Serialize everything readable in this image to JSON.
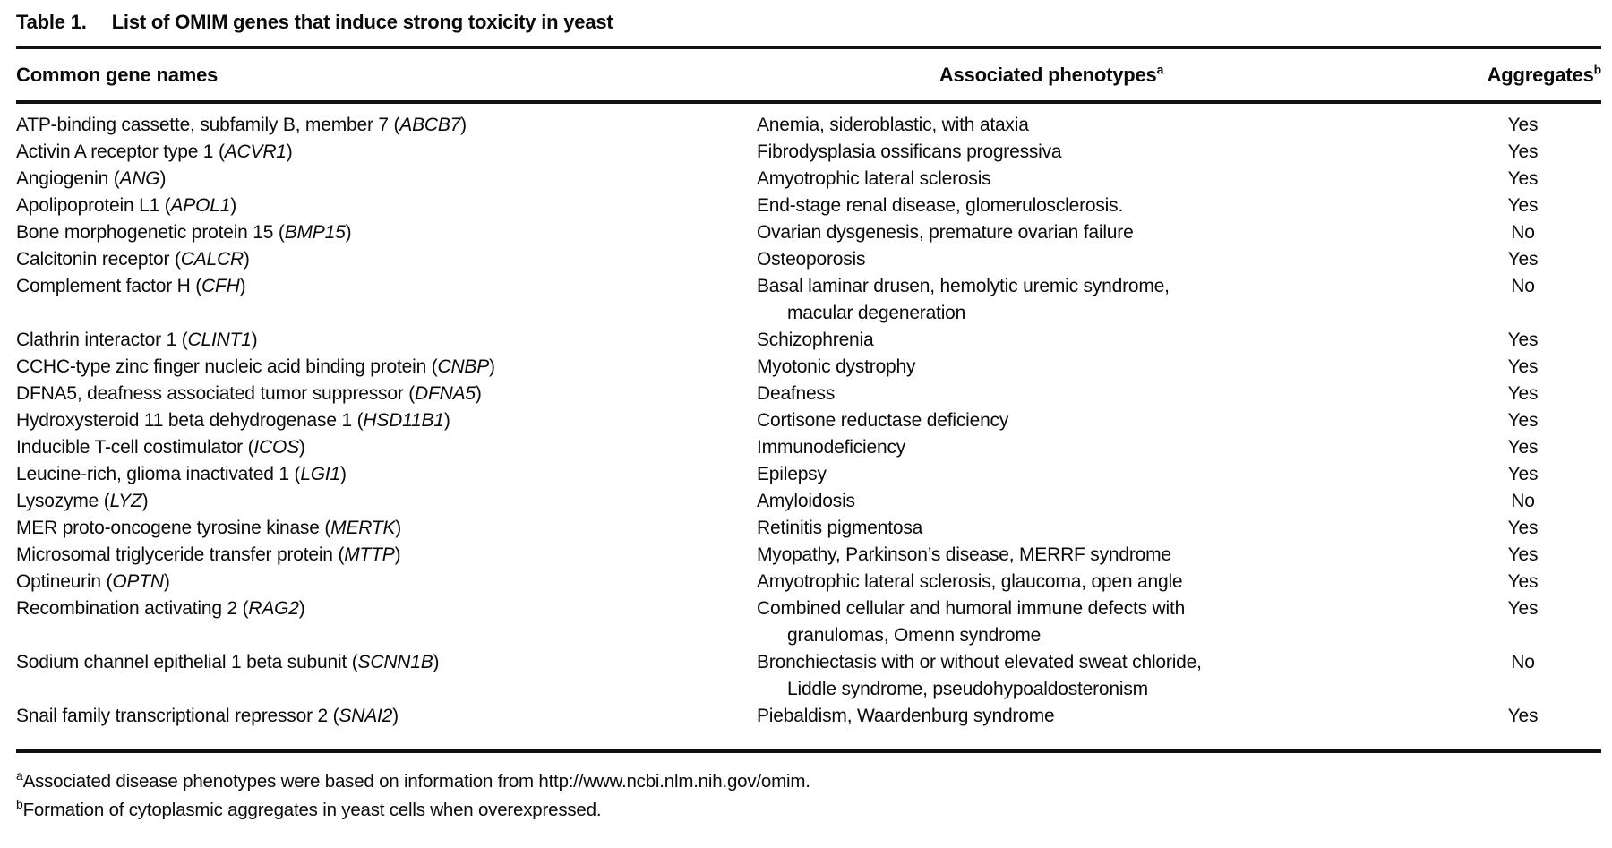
{
  "table": {
    "title_label": "Table 1.",
    "title": "List of OMIM genes that induce strong toxicity in yeast",
    "columns": {
      "gene": "Common gene names",
      "phenotype": "Associated phenotypes",
      "phenotype_sup": "a",
      "aggregates": "Aggregates",
      "aggregates_sup": "b"
    },
    "rows": [
      {
        "gene_name": "ATP-binding cassette, subfamily B, member 7",
        "gene_symbol": "ABCB7",
        "phenotype_lines": [
          "Anemia, sideroblastic, with ataxia"
        ],
        "aggregates": "Yes"
      },
      {
        "gene_name": "Activin A receptor type 1",
        "gene_symbol": "ACVR1",
        "phenotype_lines": [
          "Fibrodysplasia ossificans progressiva"
        ],
        "aggregates": "Yes"
      },
      {
        "gene_name": "Angiogenin",
        "gene_symbol": "ANG",
        "phenotype_lines": [
          "Amyotrophic lateral sclerosis"
        ],
        "aggregates": "Yes"
      },
      {
        "gene_name": "Apolipoprotein L1",
        "gene_symbol": "APOL1",
        "phenotype_lines": [
          "End-stage renal disease, glomerulosclerosis."
        ],
        "aggregates": "Yes"
      },
      {
        "gene_name": "Bone morphogenetic protein 15",
        "gene_symbol": "BMP15",
        "phenotype_lines": [
          "Ovarian dysgenesis, premature ovarian failure"
        ],
        "aggregates": "No"
      },
      {
        "gene_name": "Calcitonin receptor",
        "gene_symbol": "CALCR",
        "phenotype_lines": [
          "Osteoporosis"
        ],
        "aggregates": "Yes"
      },
      {
        "gene_name": "Complement factor H",
        "gene_symbol": "CFH",
        "phenotype_lines": [
          "Basal laminar drusen, hemolytic uremic syndrome,",
          "macular degeneration"
        ],
        "aggregates": "No"
      },
      {
        "gene_name": "Clathrin interactor 1",
        "gene_symbol": "CLINT1",
        "phenotype_lines": [
          "Schizophrenia"
        ],
        "aggregates": "Yes"
      },
      {
        "gene_name": "CCHC-type zinc finger nucleic acid binding protein",
        "gene_symbol": "CNBP",
        "phenotype_lines": [
          "Myotonic dystrophy"
        ],
        "aggregates": "Yes"
      },
      {
        "gene_name": "DFNA5, deafness associated tumor suppressor",
        "gene_symbol": "DFNA5",
        "phenotype_lines": [
          "Deafness"
        ],
        "aggregates": "Yes"
      },
      {
        "gene_name": "Hydroxysteroid 11 beta dehydrogenase 1",
        "gene_symbol": "HSD11B1",
        "phenotype_lines": [
          "Cortisone reductase deficiency"
        ],
        "aggregates": "Yes"
      },
      {
        "gene_name": "Inducible T-cell costimulator",
        "gene_symbol": "ICOS",
        "phenotype_lines": [
          "Immunodeficiency"
        ],
        "aggregates": "Yes"
      },
      {
        "gene_name": "Leucine-rich, glioma inactivated 1",
        "gene_symbol": "LGI1",
        "phenotype_lines": [
          "Epilepsy"
        ],
        "aggregates": "Yes"
      },
      {
        "gene_name": "Lysozyme",
        "gene_symbol": "LYZ",
        "phenotype_lines": [
          "Amyloidosis"
        ],
        "aggregates": "No"
      },
      {
        "gene_name": "MER proto-oncogene tyrosine kinase",
        "gene_symbol": "MERTK",
        "phenotype_lines": [
          "Retinitis pigmentosa"
        ],
        "aggregates": "Yes"
      },
      {
        "gene_name": "Microsomal triglyceride transfer protein",
        "gene_symbol": "MTTP",
        "phenotype_lines": [
          "Myopathy, Parkinson’s disease, MERRF syndrome"
        ],
        "aggregates": "Yes"
      },
      {
        "gene_name": "Optineurin",
        "gene_symbol": "OPTN",
        "phenotype_lines": [
          "Amyotrophic lateral sclerosis, glaucoma, open angle"
        ],
        "aggregates": "Yes"
      },
      {
        "gene_name": "Recombination activating 2",
        "gene_symbol": "RAG2",
        "phenotype_lines": [
          "Combined cellular and humoral immune defects with",
          "granulomas, Omenn syndrome"
        ],
        "aggregates": "Yes"
      },
      {
        "gene_name": "Sodium channel epithelial 1 beta subunit",
        "gene_symbol": "SCNN1B",
        "phenotype_lines": [
          "Bronchiectasis with or without elevated sweat chloride,",
          "Liddle syndrome, pseudohypoaldosteronism"
        ],
        "aggregates": "No"
      },
      {
        "gene_name": "Snail family transcriptional repressor 2",
        "gene_symbol": "SNAI2",
        "phenotype_lines": [
          "Piebaldism, Waardenburg syndrome"
        ],
        "aggregates": "Yes"
      }
    ],
    "footnotes": [
      {
        "sup": "a",
        "text": "Associated disease phenotypes were based on information from http://www.ncbi.nlm.nih.gov/omim."
      },
      {
        "sup": "b",
        "text": "Formation of cytoplasmic aggregates in yeast cells when overexpressed."
      }
    ]
  }
}
